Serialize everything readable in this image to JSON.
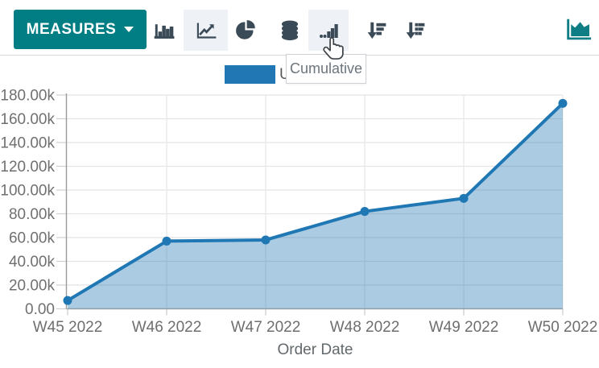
{
  "toolbar": {
    "measures_button": {
      "label": "MEASURES"
    },
    "buttons": [
      {
        "name": "bar-chart",
        "selected": false
      },
      {
        "name": "line-chart",
        "selected": true
      },
      {
        "name": "pie-chart",
        "selected": false
      },
      {
        "name": "stacked",
        "selected": false
      },
      {
        "name": "cumulative",
        "selected": false,
        "hovered": true
      },
      {
        "name": "sort-descending",
        "selected": false
      },
      {
        "name": "sort-ascending",
        "selected": false
      },
      {
        "name": "area-chart-shortcut",
        "selected": false
      }
    ],
    "accent_color": "#017e84",
    "icon_color": "#3b4a57"
  },
  "tooltip": {
    "text": "Cumulative"
  },
  "legend": {
    "visible_label": "U",
    "swatch_color": "#2077b4"
  },
  "chart_data": {
    "type": "area",
    "categories": [
      "W45 2022",
      "W46 2022",
      "W47 2022",
      "W48 2022",
      "W49 2022",
      "W50 2022"
    ],
    "series": [
      {
        "name": "U",
        "values": [
          7000,
          57000,
          58000,
          82000,
          93000,
          173000
        ],
        "color": "#1f77b4",
        "fill": "rgba(31,119,180,0.38)"
      }
    ],
    "title": "",
    "xlabel": "Order Date",
    "ylabel": "",
    "ylim": [
      0,
      180000
    ],
    "ytick_step": 20000,
    "ytick_labels": [
      "0.00",
      "20.00k",
      "40.00k",
      "60.00k",
      "80.00k",
      "100.00k",
      "120.00k",
      "140.00k",
      "160.00k",
      "180.00k"
    ],
    "grid": true,
    "legend_position": "top"
  }
}
